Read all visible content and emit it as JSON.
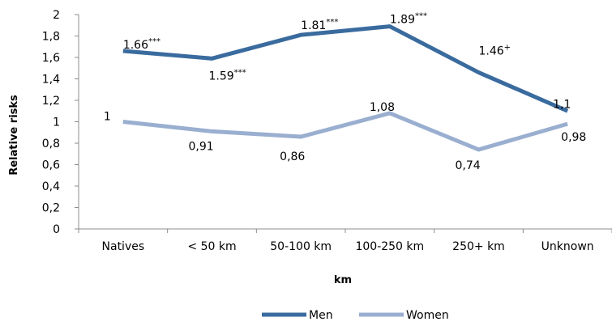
{
  "chart_data": {
    "type": "line",
    "categories": [
      "Natives",
      "< 50 km",
      "50-100 km",
      "100-250 km",
      "250+ km",
      "Unknown"
    ],
    "series": [
      {
        "name": "Men",
        "color": "#3A6B9E",
        "values": [
          1.66,
          1.59,
          1.81,
          1.89,
          1.46,
          1.1
        ],
        "labels": [
          "1.66",
          "1.59",
          "1.81",
          "1.89",
          "1.46",
          "1,1"
        ],
        "sups": [
          "***",
          "***",
          "***",
          "***",
          "+",
          ""
        ]
      },
      {
        "name": "Women",
        "color": "#9AAFD0",
        "values": [
          1.0,
          0.91,
          0.86,
          1.08,
          0.74,
          0.98
        ],
        "labels": [
          "1",
          "0,91",
          "0,86",
          "1,08",
          "0,74",
          "0,98"
        ],
        "sups": [
          "",
          "",
          "",
          "",
          "",
          ""
        ]
      }
    ],
    "xlabel": "km",
    "ylabel": "Relative risks",
    "ylim": [
      0,
      2
    ],
    "yticks": [
      0,
      0.2,
      0.4,
      0.6,
      0.8,
      1,
      1.2,
      1.4,
      1.6,
      1.8,
      2
    ],
    "ytick_labels": [
      "0",
      "0,2",
      "0,4",
      "0,6",
      "0,8",
      "1",
      "1,2",
      "1,4",
      "1,6",
      "1,8",
      "2"
    ],
    "grid": false,
    "legend": "bottom"
  }
}
